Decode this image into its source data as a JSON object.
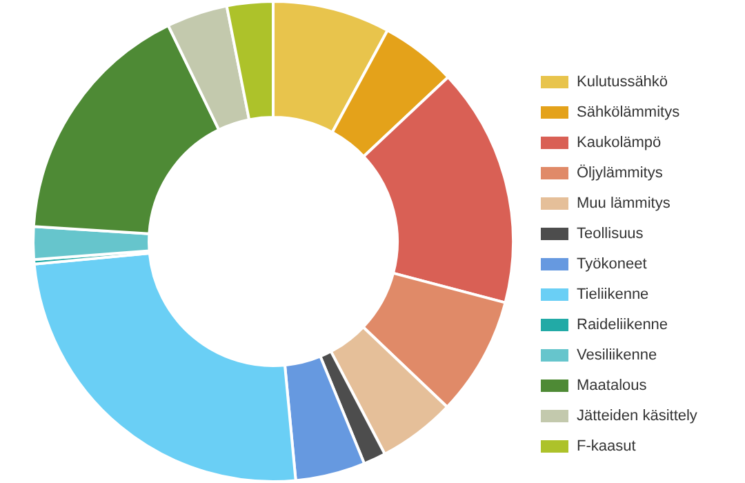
{
  "chart_data": {
    "type": "donut",
    "categories": [
      "Kulutussähkö",
      "Sähkölämmitys",
      "Kaukolämpö",
      "Öljylämmitys",
      "Muu lämmitys",
      "Teollisuus",
      "Työkoneet",
      "Tieliikenne",
      "Raideliikenne",
      "Vesiliikenne",
      "Maatalous",
      "Jätteiden käsittely",
      "F-kaasut"
    ],
    "values": [
      7.9,
      5.1,
      16.1,
      8.0,
      5.2,
      1.5,
      4.7,
      25.0,
      0.3,
      2.2,
      16.8,
      4.1,
      3.1
    ],
    "colors": [
      "#e8c44c",
      "#e4a21a",
      "#d96055",
      "#e08a68",
      "#e5bf99",
      "#4d4d4d",
      "#6699e0",
      "#6acff5",
      "#22aaa6",
      "#66c5cc",
      "#4e8a35",
      "#c3c9ad",
      "#adc22a"
    ],
    "legend": "right"
  }
}
